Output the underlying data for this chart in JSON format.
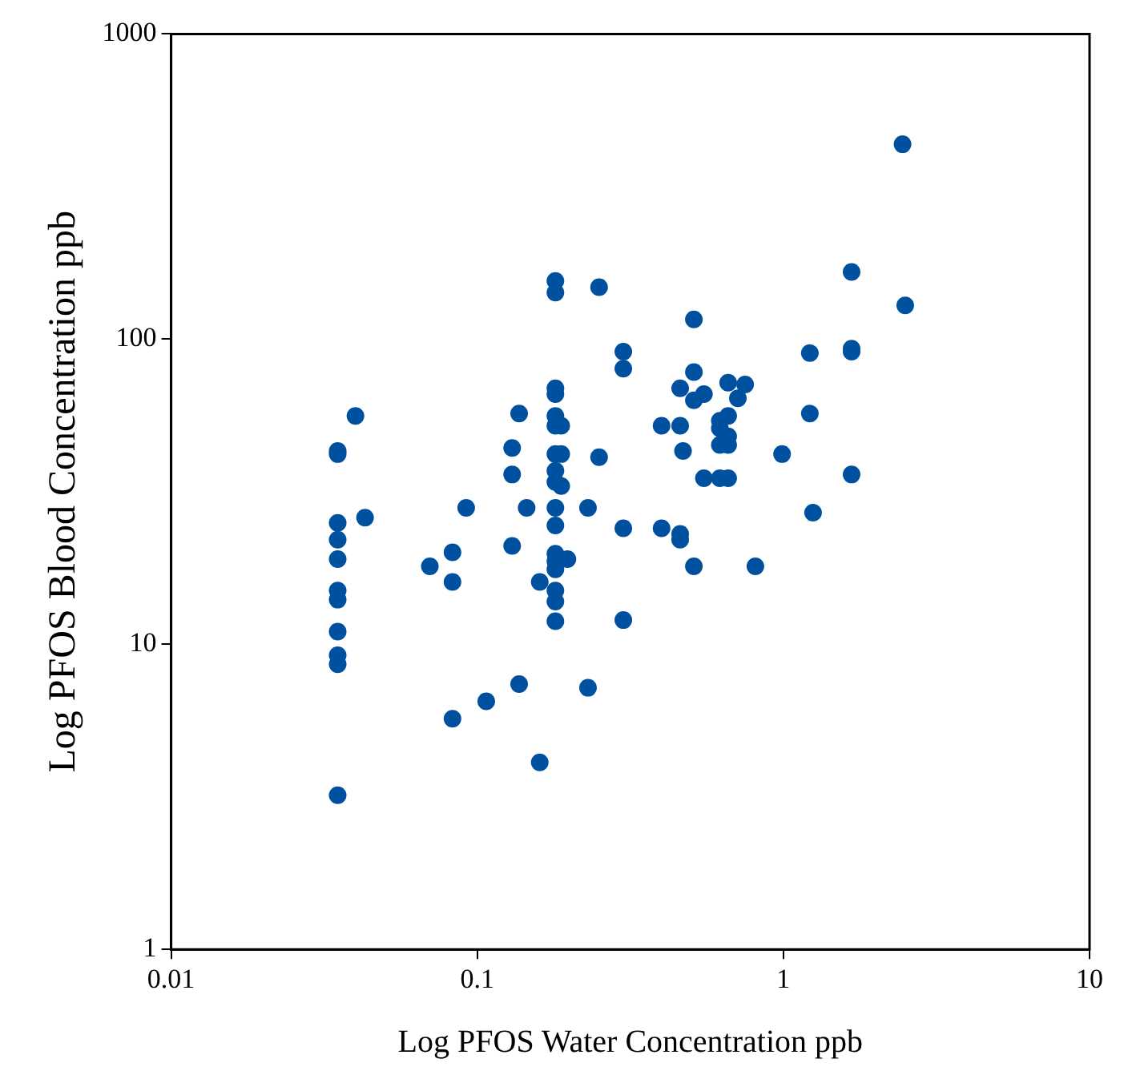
{
  "chart_data": {
    "type": "scatter",
    "xlabel": "Log PFOS Water Concentration ppb",
    "ylabel": "Log PFOS Blood Concentration ppb",
    "log": "xy",
    "grid": false,
    "legend": false,
    "marker": "circle",
    "xlim": [
      0.01,
      10
    ],
    "ylim": [
      1,
      1000
    ],
    "xticks": [
      0.01,
      0.1,
      1,
      10
    ],
    "yticks": [
      1,
      10,
      100,
      1000
    ],
    "series": [
      {
        "color": "#0050a0",
        "x": [
          0.035,
          0.035,
          0.035,
          0.035,
          0.035,
          0.035,
          0.035,
          0.035,
          0.035,
          0.035,
          0.035,
          0.04,
          0.043,
          0.07,
          0.083,
          0.083,
          0.083,
          0.092,
          0.107,
          0.13,
          0.13,
          0.13,
          0.137,
          0.137,
          0.145,
          0.16,
          0.16,
          0.18,
          0.18,
          0.18,
          0.18,
          0.18,
          0.18,
          0.18,
          0.18,
          0.18,
          0.18,
          0.18,
          0.18,
          0.18,
          0.18,
          0.18,
          0.18,
          0.18,
          0.188,
          0.188,
          0.188,
          0.197,
          0.23,
          0.23,
          0.25,
          0.25,
          0.3,
          0.3,
          0.3,
          0.3,
          0.4,
          0.4,
          0.46,
          0.46,
          0.46,
          0.46,
          0.47,
          0.51,
          0.51,
          0.51,
          0.51,
          0.55,
          0.55,
          0.62,
          0.62,
          0.62,
          0.62,
          0.66,
          0.66,
          0.66,
          0.66,
          0.66,
          0.71,
          0.75,
          0.81,
          0.99,
          1.22,
          1.22,
          1.25,
          1.67,
          1.67,
          1.67,
          1.67,
          2.45,
          2.5
        ],
        "values": [
          42,
          43,
          25,
          22,
          19,
          15,
          14,
          11,
          9.2,
          8.6,
          3.2,
          56,
          26,
          18,
          20,
          16,
          5.7,
          28,
          6.5,
          44,
          36,
          21,
          57,
          7.4,
          28,
          16,
          4.1,
          155,
          142,
          69,
          66,
          56,
          52,
          42,
          37,
          34,
          28,
          24.5,
          19.8,
          18.7,
          17.6,
          15,
          13.8,
          11.9,
          52,
          42,
          33,
          19,
          28,
          7.2,
          148,
          41,
          91,
          80,
          24,
          12,
          52,
          24,
          69,
          52,
          23,
          22,
          43,
          116,
          78,
          63,
          18,
          66,
          35,
          54,
          51,
          45,
          35,
          56,
          48,
          45,
          72,
          35,
          64,
          71,
          18,
          42,
          90,
          57,
          27,
          166,
          93,
          91,
          36,
          435,
          129
        ]
      }
    ]
  }
}
